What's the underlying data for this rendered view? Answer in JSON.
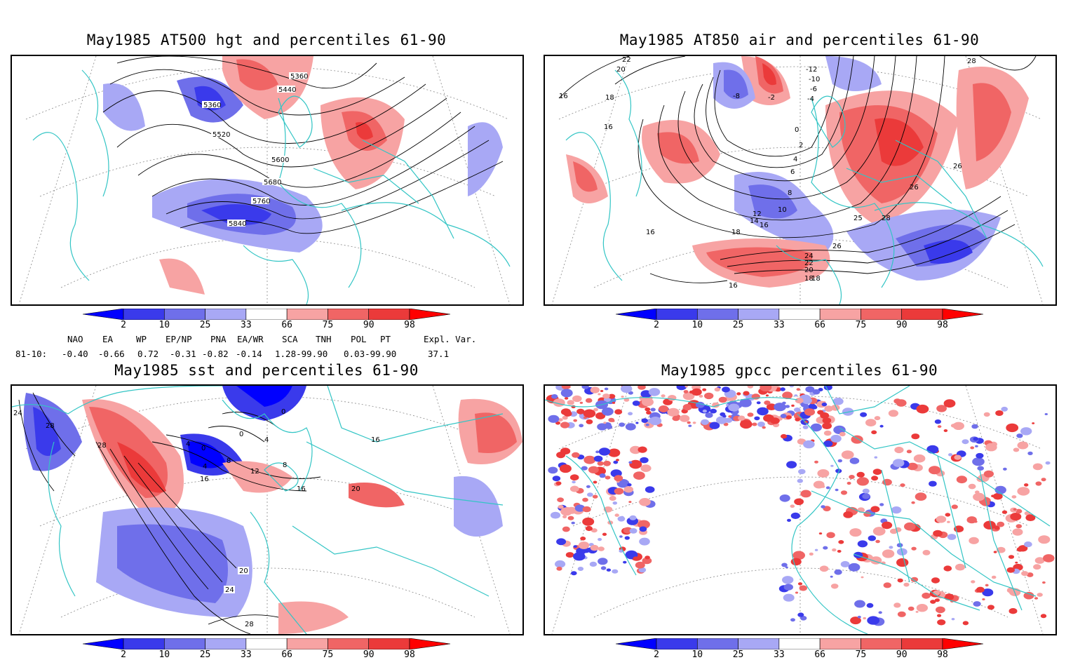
{
  "panels": [
    {
      "title": "May1985 AT500 hgt and percentiles 61-90",
      "contour_labels": [
        "5360",
        "5440",
        "5360",
        "5520",
        "5600",
        "5680",
        "5760",
        "5840"
      ]
    },
    {
      "title": "May1985 AT850 air and percentiles 61-90",
      "contour_labels": [
        "22",
        "20",
        "18",
        "16",
        "16",
        "-12",
        "-10",
        "-8",
        "-6",
        "-4",
        "-2",
        "0",
        "2",
        "4",
        "6",
        "8",
        "10",
        "12",
        "14",
        "16",
        "18",
        "16",
        "24",
        "22",
        "20",
        "18",
        "26",
        "26",
        "26",
        "28",
        "28",
        "25",
        "18",
        "16"
      ]
    },
    {
      "title": "May1985 sst and percentiles 61-90",
      "contour_labels": [
        "24",
        "28",
        "28",
        "4",
        "0",
        "4",
        "8",
        "12",
        "16",
        "0",
        "0",
        "8",
        "4",
        "16",
        "20",
        "16",
        "20",
        "24",
        "28"
      ]
    },
    {
      "title": "May1985 gpcc percentiles 61-90",
      "contour_labels": []
    }
  ],
  "colorbar": {
    "labels": [
      "2",
      "10",
      "25",
      "33",
      "66",
      "75",
      "90",
      "98"
    ],
    "colors": [
      "#0000ff",
      "#3a3aeb",
      "#6f6fea",
      "#a8a8f5",
      "#ffffff",
      "#f7a3a3",
      "#f06565",
      "#eb3a3a",
      "#ff0000"
    ]
  },
  "indices": {
    "headers": [
      "NAO",
      "EA",
      "WP",
      "EP/NP",
      "PNA",
      "EA/WR",
      "SCA",
      "TNH",
      "POL",
      "PT",
      "Expl. Var."
    ],
    "row_label": "81-10:",
    "values": [
      "-0.40",
      "-0.66",
      "0.72",
      "-0.31",
      "-0.82",
      "-0.14",
      "1.28-99.90",
      "0.03-99.90",
      "37.1"
    ]
  },
  "colors": {
    "coast": "#33c5c5",
    "contour": "#000000",
    "grid": "#888888"
  }
}
